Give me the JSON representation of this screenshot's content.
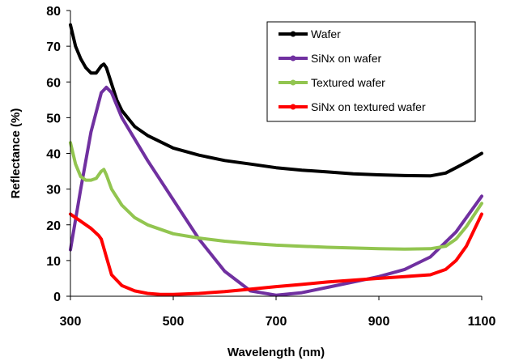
{
  "chart_data": {
    "type": "line",
    "title": "",
    "xlabel": "Wavelength (nm)",
    "ylabel": "Reflectance (%)",
    "xlim": [
      300,
      1100
    ],
    "ylim": [
      0,
      80
    ],
    "x_ticks": [
      300,
      500,
      700,
      900,
      1100
    ],
    "y_ticks": [
      0,
      10,
      20,
      30,
      40,
      50,
      60,
      70,
      80
    ],
    "x_tick_labels": [
      "300",
      "500",
      "700",
      "900",
      "1100"
    ],
    "y_tick_labels": [
      "0",
      "10",
      "20",
      "30",
      "40",
      "50",
      "60",
      "70",
      "80"
    ],
    "grid": false,
    "legend_position": "top-right",
    "series": [
      {
        "name": "Wafer",
        "color": "#000000",
        "x": [
          300,
          310,
          320,
          330,
          340,
          350,
          360,
          365,
          370,
          380,
          390,
          400,
          425,
          450,
          500,
          550,
          600,
          650,
          700,
          750,
          800,
          850,
          900,
          950,
          1000,
          1030,
          1050,
          1070,
          1100
        ],
        "y": [
          76,
          70,
          66.5,
          64,
          62.5,
          62.5,
          64.5,
          65,
          64,
          59.5,
          55,
          52,
          47.5,
          45,
          41.5,
          39.5,
          38,
          37,
          36,
          35.3,
          34.8,
          34.3,
          34,
          33.8,
          33.7,
          34.5,
          36,
          37.5,
          40
        ]
      },
      {
        "name": "SiNx on wafer",
        "color": "#7030A0",
        "x": [
          300,
          320,
          340,
          360,
          370,
          380,
          400,
          450,
          500,
          550,
          600,
          650,
          700,
          750,
          800,
          850,
          900,
          950,
          1000,
          1050,
          1100
        ],
        "y": [
          13,
          30,
          46,
          57,
          58.5,
          57,
          50,
          38,
          27,
          16,
          7,
          1.5,
          0.3,
          1,
          2.5,
          4,
          5.5,
          7.5,
          11,
          18,
          28
        ]
      },
      {
        "name": "Textured wafer",
        "color": "#92C550",
        "x": [
          300,
          310,
          320,
          330,
          340,
          350,
          360,
          365,
          370,
          380,
          400,
          425,
          450,
          500,
          550,
          600,
          650,
          700,
          750,
          800,
          850,
          900,
          950,
          1000,
          1030,
          1050,
          1070,
          1100
        ],
        "y": [
          43,
          37,
          33.5,
          32.5,
          32.5,
          33,
          35,
          35.5,
          34,
          30,
          25.5,
          22,
          20,
          17.5,
          16.3,
          15.4,
          14.8,
          14.3,
          14,
          13.7,
          13.5,
          13.3,
          13.2,
          13.3,
          14,
          16,
          19.5,
          26
        ]
      },
      {
        "name": "SiNx on textured wafer",
        "color": "#FF0000",
        "x": [
          300,
          320,
          340,
          355,
          360,
          370,
          380,
          400,
          425,
          450,
          475,
          500,
          550,
          600,
          650,
          700,
          750,
          800,
          850,
          900,
          950,
          1000,
          1030,
          1050,
          1070,
          1100
        ],
        "y": [
          23,
          21,
          19,
          17,
          16,
          11,
          6,
          3,
          1.5,
          0.8,
          0.5,
          0.5,
          0.8,
          1.3,
          2,
          2.7,
          3.3,
          4,
          4.5,
          5,
          5.5,
          6,
          7.5,
          10,
          14,
          23
        ]
      }
    ]
  }
}
